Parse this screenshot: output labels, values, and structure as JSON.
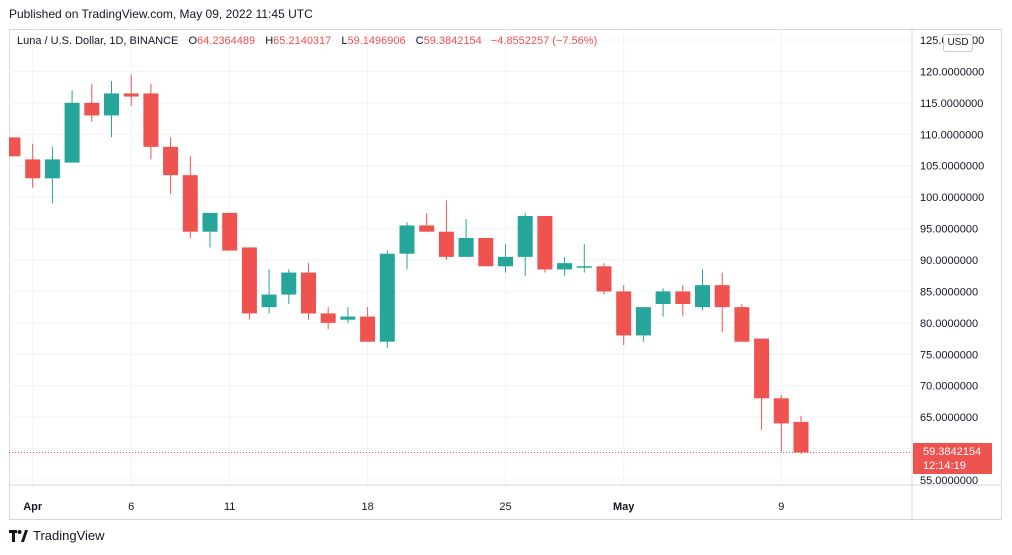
{
  "header": {
    "published": "Published on TradingView.com, May 09, 2022 11:45 UTC"
  },
  "legend": {
    "symbol": "Luna / U.S. Dollar, 1D, BINANCE",
    "open_label": "O",
    "open": "64.2364489",
    "high_label": "H",
    "high": "65.2140317",
    "low_label": "L",
    "low": "59.1496906",
    "close_label": "C",
    "close": "59.3842154",
    "change": "−4.8552257 (−7.56%)"
  },
  "currency_badge": "USD",
  "last_price": {
    "price": "59.3842154",
    "countdown": "12:14:19"
  },
  "footer": {
    "brand": "TradingView"
  },
  "colors": {
    "up": "#26a69a",
    "down": "#ef5350",
    "grid": "#f0f3fa"
  },
  "chart_data": {
    "type": "candlestick",
    "y_axis": {
      "min": 55,
      "max": 125,
      "step": 5,
      "position": "right",
      "tick_labels": [
        "125.0000000",
        "120.0000000",
        "115.0000000",
        "110.0000000",
        "105.0000000",
        "100.0000000",
        "95.0000000",
        "90.0000000",
        "85.0000000",
        "80.0000000",
        "75.0000000",
        "70.0000000",
        "65.0000000",
        "60.0000000",
        "55.0000000"
      ]
    },
    "x_axis": {
      "tick_labels": [
        {
          "label": "Apr",
          "index": 1,
          "bold": true
        },
        {
          "label": "6",
          "index": 6,
          "bold": false
        },
        {
          "label": "11",
          "index": 11,
          "bold": false
        },
        {
          "label": "18",
          "index": 18,
          "bold": false
        },
        {
          "label": "25",
          "index": 25,
          "bold": false
        },
        {
          "label": "May",
          "index": 31,
          "bold": true
        },
        {
          "label": "9",
          "index": 39,
          "bold": false
        }
      ]
    },
    "grid": true,
    "candles": [
      {
        "o": 109.5,
        "h": 109.5,
        "l": 106.5,
        "c": 106.5
      },
      {
        "o": 106.0,
        "h": 108.5,
        "l": 101.5,
        "c": 103.0
      },
      {
        "o": 103.0,
        "h": 108.0,
        "l": 99.0,
        "c": 106.0
      },
      {
        "o": 105.5,
        "h": 117.0,
        "l": 105.5,
        "c": 115.0
      },
      {
        "o": 115.0,
        "h": 118.0,
        "l": 112.0,
        "c": 113.0
      },
      {
        "o": 113.0,
        "h": 118.5,
        "l": 109.5,
        "c": 116.5
      },
      {
        "o": 116.5,
        "h": 119.5,
        "l": 114.5,
        "c": 116.0
      },
      {
        "o": 116.5,
        "h": 118.0,
        "l": 106.0,
        "c": 108.0
      },
      {
        "o": 108.0,
        "h": 109.5,
        "l": 100.5,
        "c": 103.5
      },
      {
        "o": 103.5,
        "h": 106.5,
        "l": 93.5,
        "c": 94.5
      },
      {
        "o": 94.5,
        "h": 97.5,
        "l": 92.0,
        "c": 97.5
      },
      {
        "o": 97.5,
        "h": 97.5,
        "l": 91.5,
        "c": 91.5
      },
      {
        "o": 92.0,
        "h": 92.0,
        "l": 80.5,
        "c": 81.5
      },
      {
        "o": 82.5,
        "h": 88.5,
        "l": 81.5,
        "c": 84.5
      },
      {
        "o": 84.5,
        "h": 88.5,
        "l": 83.0,
        "c": 88.0
      },
      {
        "o": 88.0,
        "h": 89.5,
        "l": 80.5,
        "c": 81.5
      },
      {
        "o": 81.5,
        "h": 82.5,
        "l": 79.0,
        "c": 80.0
      },
      {
        "o": 80.5,
        "h": 82.5,
        "l": 80.0,
        "c": 81.0
      },
      {
        "o": 81.0,
        "h": 82.5,
        "l": 77.0,
        "c": 77.0
      },
      {
        "o": 77.0,
        "h": 91.5,
        "l": 76.0,
        "c": 91.0
      },
      {
        "o": 91.0,
        "h": 96.0,
        "l": 88.5,
        "c": 95.5
      },
      {
        "o": 95.5,
        "h": 97.5,
        "l": 94.5,
        "c": 94.5
      },
      {
        "o": 94.5,
        "h": 99.5,
        "l": 90.0,
        "c": 90.5
      },
      {
        "o": 90.5,
        "h": 96.5,
        "l": 90.5,
        "c": 93.5
      },
      {
        "o": 93.5,
        "h": 93.5,
        "l": 89.0,
        "c": 89.0
      },
      {
        "o": 89.0,
        "h": 92.5,
        "l": 88.0,
        "c": 90.5
      },
      {
        "o": 90.5,
        "h": 97.5,
        "l": 87.5,
        "c": 97.0
      },
      {
        "o": 97.0,
        "h": 97.0,
        "l": 88.0,
        "c": 88.5
      },
      {
        "o": 88.5,
        "h": 90.5,
        "l": 87.5,
        "c": 89.5
      },
      {
        "o": 89.0,
        "h": 92.5,
        "l": 88.0,
        "c": 89.0
      },
      {
        "o": 89.0,
        "h": 89.5,
        "l": 84.5,
        "c": 85.0
      },
      {
        "o": 85.0,
        "h": 86.0,
        "l": 76.5,
        "c": 78.0
      },
      {
        "o": 78.0,
        "h": 82.5,
        "l": 77.0,
        "c": 82.5
      },
      {
        "o": 83.0,
        "h": 85.5,
        "l": 81.0,
        "c": 85.0
      },
      {
        "o": 85.0,
        "h": 86.0,
        "l": 81.0,
        "c": 83.0
      },
      {
        "o": 82.5,
        "h": 88.5,
        "l": 82.0,
        "c": 86.0
      },
      {
        "o": 86.0,
        "h": 88.0,
        "l": 78.5,
        "c": 82.5
      },
      {
        "o": 82.5,
        "h": 83.0,
        "l": 77.0,
        "c": 77.0
      },
      {
        "o": 77.5,
        "h": 77.5,
        "l": 63.0,
        "c": 68.0
      },
      {
        "o": 68.0,
        "h": 68.5,
        "l": 59.5,
        "c": 64.0
      },
      {
        "o": 64.2364489,
        "h": 65.2140317,
        "l": 59.1496906,
        "c": 59.3842154
      }
    ]
  }
}
